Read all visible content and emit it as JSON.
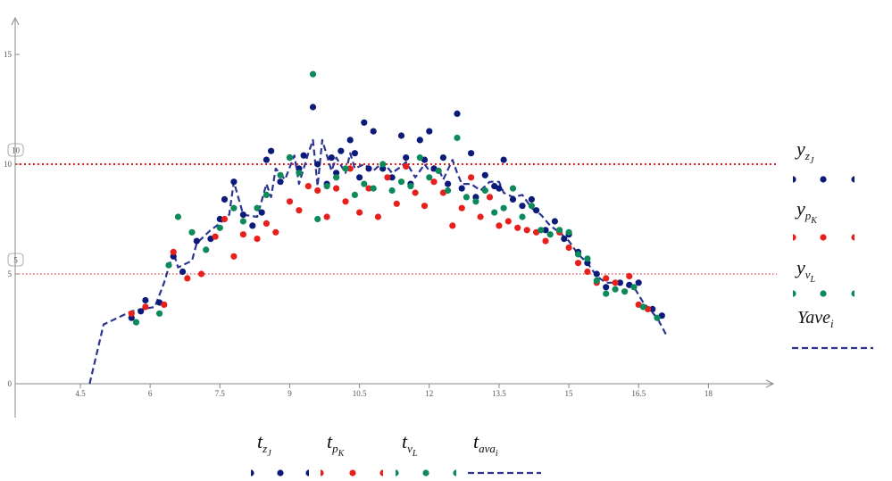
{
  "chart_data": {
    "type": "scatter",
    "title": "",
    "xlabel": "",
    "ylabel": "",
    "xlim": [
      2.5,
      19.7
    ],
    "ylim": [
      -1.2,
      16.3
    ],
    "x_ticks": [
      "4.5",
      "6",
      "7.5",
      "9",
      "10.5",
      "12",
      "13.5",
      "15",
      "16.5",
      "18"
    ],
    "y_ticks": [
      "0",
      "5",
      "10",
      "15"
    ],
    "x_tick_values": [
      4.5,
      6,
      7.5,
      9,
      10.5,
      12,
      13.5,
      15,
      16.5,
      18
    ],
    "y_tick_values": [
      0,
      5,
      10,
      15
    ],
    "reference_lines": [
      {
        "value": 10,
        "label": "10",
        "color": "#e0201c",
        "style": "dotted-bold"
      },
      {
        "value": 5,
        "label": "5",
        "color": "#e0201c",
        "style": "dotted-thin"
      }
    ],
    "series": [
      {
        "name": "y_zJ",
        "color": "#0c1a7a",
        "marker": "dot",
        "points": [
          [
            5.6,
            3.0
          ],
          [
            5.8,
            3.3
          ],
          [
            5.9,
            3.8
          ],
          [
            6.2,
            3.7
          ],
          [
            6.5,
            5.8
          ],
          [
            6.7,
            5.1
          ],
          [
            7.0,
            6.5
          ],
          [
            7.3,
            6.6
          ],
          [
            7.5,
            7.5
          ],
          [
            7.6,
            8.4
          ],
          [
            7.8,
            9.2
          ],
          [
            8.0,
            7.7
          ],
          [
            8.2,
            7.2
          ],
          [
            8.4,
            7.8
          ],
          [
            8.5,
            10.2
          ],
          [
            8.6,
            10.6
          ],
          [
            8.8,
            9.2
          ],
          [
            9.0,
            10.3
          ],
          [
            9.2,
            9.8
          ],
          [
            9.3,
            10.4
          ],
          [
            9.5,
            12.6
          ],
          [
            9.6,
            10.0
          ],
          [
            9.8,
            9.1
          ],
          [
            9.9,
            10.3
          ],
          [
            10.0,
            9.6
          ],
          [
            10.1,
            10.6
          ],
          [
            10.3,
            11.1
          ],
          [
            10.4,
            10.5
          ],
          [
            10.5,
            9.4
          ],
          [
            10.6,
            11.9
          ],
          [
            10.7,
            9.8
          ],
          [
            10.8,
            11.5
          ],
          [
            11.0,
            9.8
          ],
          [
            11.2,
            9.4
          ],
          [
            11.4,
            11.3
          ],
          [
            11.5,
            10.3
          ],
          [
            11.6,
            9.1
          ],
          [
            11.8,
            11.1
          ],
          [
            11.9,
            10.2
          ],
          [
            12.0,
            11.5
          ],
          [
            12.1,
            9.8
          ],
          [
            12.3,
            10.3
          ],
          [
            12.4,
            9.1
          ],
          [
            12.6,
            12.3
          ],
          [
            12.7,
            8.9
          ],
          [
            12.9,
            10.5
          ],
          [
            13.0,
            8.5
          ],
          [
            13.2,
            9.5
          ],
          [
            13.4,
            9.0
          ],
          [
            13.5,
            8.9
          ],
          [
            13.6,
            10.2
          ],
          [
            13.8,
            8.4
          ],
          [
            14.0,
            8.1
          ],
          [
            14.2,
            8.4
          ],
          [
            14.3,
            7.9
          ],
          [
            14.5,
            7.0
          ],
          [
            14.7,
            7.4
          ],
          [
            14.9,
            6.6
          ],
          [
            15.0,
            6.8
          ],
          [
            15.2,
            6.0
          ],
          [
            15.4,
            5.5
          ],
          [
            15.6,
            5.0
          ],
          [
            15.8,
            4.4
          ],
          [
            16.1,
            4.6
          ],
          [
            16.3,
            4.5
          ],
          [
            16.5,
            4.6
          ],
          [
            16.8,
            3.4
          ],
          [
            17.0,
            3.1
          ]
        ]
      },
      {
        "name": "y_pK",
        "color": "#e8201c",
        "marker": "dot",
        "points": [
          [
            5.6,
            3.2
          ],
          [
            5.9,
            3.5
          ],
          [
            6.3,
            3.6
          ],
          [
            6.5,
            6.0
          ],
          [
            6.8,
            4.8
          ],
          [
            7.1,
            5.0
          ],
          [
            7.4,
            6.7
          ],
          [
            7.6,
            7.5
          ],
          [
            7.8,
            5.8
          ],
          [
            8.0,
            6.8
          ],
          [
            8.3,
            6.6
          ],
          [
            8.5,
            7.3
          ],
          [
            8.7,
            6.9
          ],
          [
            9.0,
            8.3
          ],
          [
            9.2,
            7.9
          ],
          [
            9.4,
            9.0
          ],
          [
            9.6,
            8.8
          ],
          [
            9.8,
            7.6
          ],
          [
            10.0,
            8.9
          ],
          [
            10.2,
            8.3
          ],
          [
            10.3,
            9.8
          ],
          [
            10.5,
            7.8
          ],
          [
            10.7,
            8.9
          ],
          [
            10.9,
            7.6
          ],
          [
            11.1,
            9.4
          ],
          [
            11.3,
            8.2
          ],
          [
            11.5,
            9.9
          ],
          [
            11.7,
            8.7
          ],
          [
            11.9,
            8.1
          ],
          [
            12.1,
            9.2
          ],
          [
            12.3,
            8.7
          ],
          [
            12.5,
            7.2
          ],
          [
            12.7,
            8.0
          ],
          [
            12.9,
            9.4
          ],
          [
            13.1,
            7.6
          ],
          [
            13.3,
            8.5
          ],
          [
            13.5,
            7.2
          ],
          [
            13.7,
            7.4
          ],
          [
            13.9,
            7.1
          ],
          [
            14.1,
            7.0
          ],
          [
            14.3,
            6.9
          ],
          [
            14.5,
            6.5
          ],
          [
            14.8,
            6.9
          ],
          [
            15.0,
            6.2
          ],
          [
            15.2,
            5.5
          ],
          [
            15.4,
            5.1
          ],
          [
            15.6,
            4.6
          ],
          [
            15.8,
            4.8
          ],
          [
            16.0,
            4.6
          ],
          [
            16.3,
            4.9
          ],
          [
            16.5,
            3.6
          ],
          [
            16.7,
            3.4
          ]
        ]
      },
      {
        "name": "y_vL",
        "color": "#0d8a5a",
        "marker": "dot",
        "points": [
          [
            5.7,
            2.8
          ],
          [
            6.2,
            3.2
          ],
          [
            6.4,
            5.4
          ],
          [
            6.6,
            7.6
          ],
          [
            6.9,
            6.9
          ],
          [
            7.2,
            6.1
          ],
          [
            7.5,
            7.1
          ],
          [
            7.8,
            8.0
          ],
          [
            8.0,
            7.4
          ],
          [
            8.3,
            8.0
          ],
          [
            8.5,
            8.6
          ],
          [
            8.8,
            9.5
          ],
          [
            9.0,
            10.3
          ],
          [
            9.2,
            9.6
          ],
          [
            9.5,
            14.1
          ],
          [
            9.6,
            7.5
          ],
          [
            9.8,
            9.0
          ],
          [
            10.0,
            9.4
          ],
          [
            10.2,
            9.8
          ],
          [
            10.4,
            8.6
          ],
          [
            10.6,
            9.1
          ],
          [
            10.8,
            8.9
          ],
          [
            11.0,
            10.0
          ],
          [
            11.2,
            8.8
          ],
          [
            11.4,
            9.2
          ],
          [
            11.6,
            9.0
          ],
          [
            11.8,
            10.3
          ],
          [
            12.0,
            9.4
          ],
          [
            12.2,
            9.7
          ],
          [
            12.4,
            8.8
          ],
          [
            12.6,
            11.2
          ],
          [
            12.8,
            8.5
          ],
          [
            13.0,
            8.3
          ],
          [
            13.2,
            8.8
          ],
          [
            13.4,
            7.8
          ],
          [
            13.6,
            8.0
          ],
          [
            13.8,
            8.9
          ],
          [
            14.0,
            7.6
          ],
          [
            14.2,
            8.1
          ],
          [
            14.4,
            7.0
          ],
          [
            14.6,
            6.8
          ],
          [
            14.8,
            7.0
          ],
          [
            15.0,
            6.9
          ],
          [
            15.2,
            5.9
          ],
          [
            15.4,
            5.7
          ],
          [
            15.6,
            4.7
          ],
          [
            15.8,
            4.1
          ],
          [
            16.0,
            4.3
          ],
          [
            16.2,
            4.2
          ],
          [
            16.4,
            4.4
          ],
          [
            16.6,
            3.5
          ],
          [
            16.9,
            3.0
          ]
        ]
      },
      {
        "name": "Yave_i",
        "color": "#2b3591",
        "marker": "dashed-line",
        "points": [
          [
            4.7,
            0
          ],
          [
            5.0,
            2.7
          ],
          [
            5.6,
            3.3
          ],
          [
            6.1,
            3.5
          ],
          [
            6.3,
            4.6
          ],
          [
            6.5,
            6.0
          ],
          [
            6.6,
            5.3
          ],
          [
            6.9,
            5.6
          ],
          [
            7.0,
            6.4
          ],
          [
            7.3,
            7.0
          ],
          [
            7.5,
            7.3
          ],
          [
            7.7,
            7.7
          ],
          [
            7.8,
            9.2
          ],
          [
            8.0,
            7.7
          ],
          [
            8.3,
            7.6
          ],
          [
            8.5,
            9.1
          ],
          [
            8.6,
            8.5
          ],
          [
            8.7,
            9.8
          ],
          [
            8.9,
            9.3
          ],
          [
            9.1,
            10.4
          ],
          [
            9.2,
            9.1
          ],
          [
            9.4,
            10.5
          ],
          [
            9.5,
            11.1
          ],
          [
            9.6,
            9.0
          ],
          [
            9.7,
            11.1
          ],
          [
            9.9,
            9.7
          ],
          [
            10.0,
            10.3
          ],
          [
            10.2,
            9.6
          ],
          [
            10.3,
            10.5
          ],
          [
            10.4,
            9.8
          ],
          [
            10.6,
            10.0
          ],
          [
            10.8,
            9.7
          ],
          [
            11.0,
            10.1
          ],
          [
            11.2,
            9.6
          ],
          [
            11.4,
            9.9
          ],
          [
            11.5,
            10.1
          ],
          [
            11.7,
            9.4
          ],
          [
            11.9,
            10.0
          ],
          [
            12.0,
            9.7
          ],
          [
            12.2,
            9.8
          ],
          [
            12.3,
            9.3
          ],
          [
            12.5,
            10.2
          ],
          [
            12.6,
            9.6
          ],
          [
            12.7,
            9.1
          ],
          [
            12.9,
            9.1
          ],
          [
            13.1,
            8.8
          ],
          [
            13.3,
            9.2
          ],
          [
            13.5,
            9.2
          ],
          [
            13.6,
            8.7
          ],
          [
            13.8,
            8.5
          ],
          [
            14.0,
            8.6
          ],
          [
            14.2,
            8.0
          ],
          [
            14.4,
            7.7
          ],
          [
            14.6,
            7.2
          ],
          [
            14.8,
            6.9
          ],
          [
            15.0,
            6.5
          ],
          [
            15.2,
            5.9
          ],
          [
            15.4,
            5.5
          ],
          [
            15.6,
            4.9
          ],
          [
            15.8,
            4.6
          ],
          [
            16.0,
            4.6
          ],
          [
            16.2,
            4.5
          ],
          [
            16.4,
            4.4
          ],
          [
            16.6,
            3.7
          ],
          [
            16.9,
            3.0
          ],
          [
            17.1,
            2.2
          ]
        ]
      }
    ]
  },
  "legend_right": {
    "y_z": {
      "base": "y",
      "sub": "z",
      "subsub": "J"
    },
    "y_p": {
      "base": "y",
      "sub": "p",
      "subsub": "K"
    },
    "y_v": {
      "base": "y",
      "sub": "v",
      "subsub": "L"
    },
    "yave": {
      "base": "Yave",
      "sub": "i"
    }
  },
  "legend_bottom": {
    "t_z": {
      "base": "t",
      "sub": "z",
      "subsub": "J"
    },
    "t_p": {
      "base": "t",
      "sub": "p",
      "subsub": "K"
    },
    "t_v": {
      "base": "t",
      "sub": "v",
      "subsub": "L"
    },
    "t_ava": {
      "base": "t",
      "sub": "ava",
      "subsub": "i"
    }
  }
}
